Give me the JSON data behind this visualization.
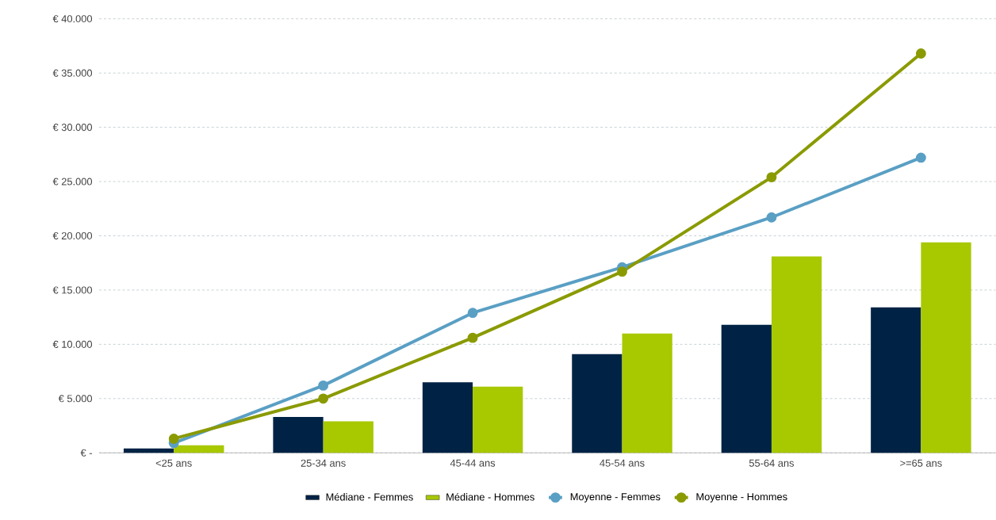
{
  "chart_data": {
    "type": "bar",
    "categories": [
      "<25 ans",
      "25-34 ans",
      "45-44 ans",
      "45-54 ans",
      "55-64 ans",
      ">=65 ans"
    ],
    "series": [
      {
        "name": "Médiane - Femmes",
        "color": "#002345",
        "values": [
          400,
          3300,
          6500,
          9100,
          11800,
          13400
        ]
      },
      {
        "name": "Médiane - Hommes",
        "color": "#a8c800",
        "values": [
          700,
          2900,
          6100,
          11000,
          18100,
          19400
        ]
      },
      {
        "name": "Moyenne - Femmes",
        "type": "line",
        "marker": "circle",
        "color": "#5a9fc4",
        "values": [
          900,
          6200,
          12900,
          17100,
          21700,
          27200
        ]
      },
      {
        "name": "Moyenne - Hommes",
        "type": "line",
        "marker": "circle",
        "color": "#8a9a00",
        "values": [
          1300,
          5000,
          10600,
          16700,
          25400,
          36800
        ]
      }
    ],
    "ylim": [
      0,
      40000
    ],
    "yticks": [
      {
        "value": 0,
        "label": "€ -"
      },
      {
        "value": 5000,
        "label": "€ 5.000"
      },
      {
        "value": 10000,
        "label": "€ 10.000"
      },
      {
        "value": 15000,
        "label": "€ 15.000"
      },
      {
        "value": 20000,
        "label": "€ 20.000"
      },
      {
        "value": 25000,
        "label": "€ 25.000"
      },
      {
        "value": 30000,
        "label": "€ 30.000"
      },
      {
        "value": 35000,
        "label": "€ 35.000"
      },
      {
        "value": 40000,
        "label": "€ 40.000"
      }
    ],
    "grid": "y",
    "legend": "bottom"
  }
}
